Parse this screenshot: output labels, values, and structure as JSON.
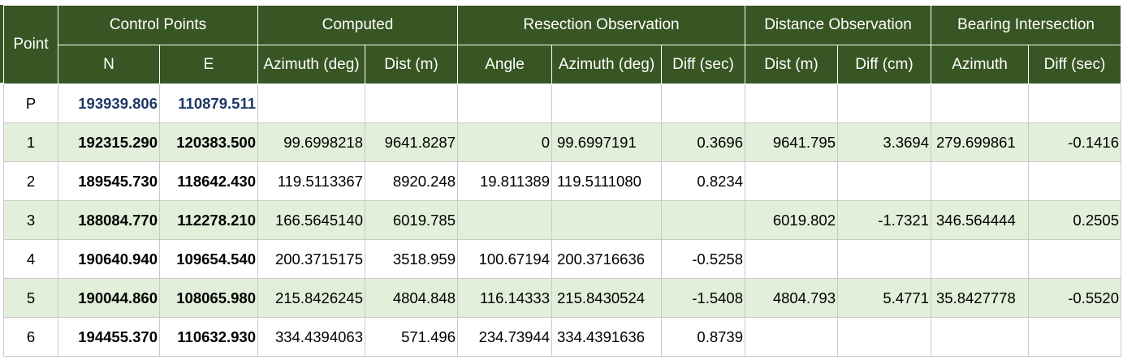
{
  "headers": {
    "point": "Point",
    "control_points": "Control Points",
    "computed": "Computed",
    "resection": "Resection Observation",
    "distance": "Distance Observation",
    "bearing": "Bearing Intersection",
    "n": "N",
    "e": "E",
    "azimuth_deg": "Azimuth (deg)",
    "dist_m": "Dist (m)",
    "angle": "Angle",
    "res_azimuth_deg": "Azimuth (deg)",
    "diff_sec": "Diff (sec)",
    "dist_obs_m": "Dist (m)",
    "diff_cm": "Diff (cm)",
    "azimuth": "Azimuth",
    "bear_diff_sec": "Diff (sec)"
  },
  "rows": [
    {
      "point": "P",
      "n": "193939.806",
      "e": "110879.511",
      "az": "",
      "dist": "",
      "angle": "",
      "raz": "",
      "rdiff": "",
      "ddist": "",
      "ddiff": "",
      "baz": "",
      "bdiff": ""
    },
    {
      "point": "1",
      "n": "192315.290",
      "e": "120383.500",
      "az": "99.6998218",
      "dist": "9641.8287",
      "angle": "0",
      "raz": "99.6997191",
      "rdiff": "0.3696",
      "ddist": "9641.795",
      "ddiff": "3.3694",
      "baz": "279.699861",
      "bdiff": "-0.1416"
    },
    {
      "point": "2",
      "n": "189545.730",
      "e": "118642.430",
      "az": "119.5113367",
      "dist": "8920.248",
      "angle": "19.811389",
      "raz": "119.5111080",
      "rdiff": "0.8234",
      "ddist": "",
      "ddiff": "",
      "baz": "",
      "bdiff": ""
    },
    {
      "point": "3",
      "n": "188084.770",
      "e": "112278.210",
      "az": "166.5645140",
      "dist": "6019.785",
      "angle": "",
      "raz": "",
      "rdiff": "",
      "ddist": "6019.802",
      "ddiff": "-1.7321",
      "baz": "346.564444",
      "bdiff": "0.2505"
    },
    {
      "point": "4",
      "n": "190640.940",
      "e": "109654.540",
      "az": "200.3715175",
      "dist": "3518.959",
      "angle": "100.67194",
      "raz": "200.3716636",
      "rdiff": "-0.5258",
      "ddist": "",
      "ddiff": "",
      "baz": "",
      "bdiff": ""
    },
    {
      "point": "5",
      "n": "190044.860",
      "e": "108065.980",
      "az": "215.8426245",
      "dist": "4804.848",
      "angle": "116.14333",
      "raz": "215.8430524",
      "rdiff": "-1.5408",
      "ddist": "4804.793",
      "ddiff": "5.4771",
      "baz": "35.8427778",
      "bdiff": "-0.5520"
    },
    {
      "point": "6",
      "n": "194455.370",
      "e": "110632.930",
      "az": "334.4394063",
      "dist": "571.496",
      "angle": "234.73944",
      "raz": "334.4391636",
      "rdiff": "0.8739",
      "ddist": "",
      "ddiff": "",
      "baz": "",
      "bdiff": ""
    }
  ],
  "colors": {
    "header_bg": "#375623",
    "header_text": "#ffffff",
    "band_row": "#e2efda",
    "grid_line": "#c9c9c9",
    "control_point_p": "#1f3864"
  }
}
